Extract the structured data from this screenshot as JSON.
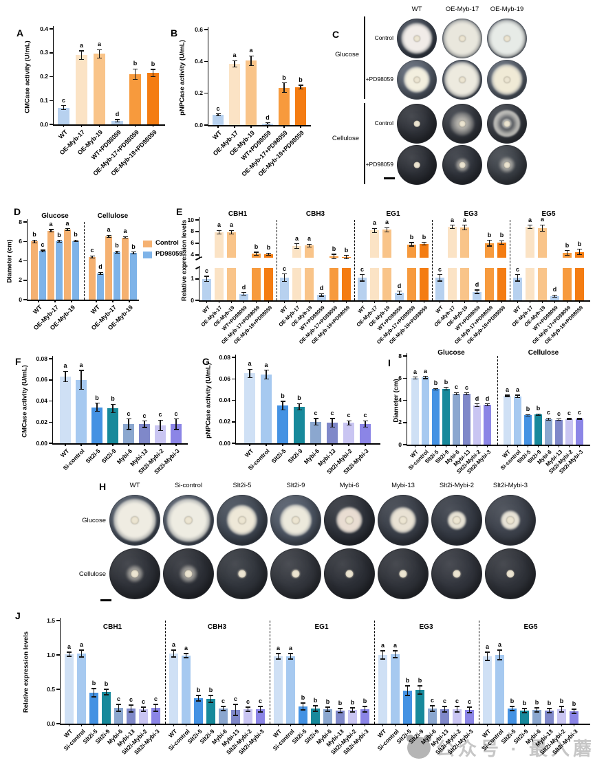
{
  "watermark": {
    "text": "公众号 · 最入蘑道"
  },
  "panel_c": {
    "label": "C",
    "columns": [
      "WT",
      "OE-Myb-17",
      "OE-Myb-19"
    ],
    "row_groups": [
      {
        "label": "Glucose",
        "rows": [
          {
            "label": "Control",
            "dishes": [
              {
                "colony_pct": 78,
                "style": "dense",
                "tone": "#f1ece8",
                "dish": "#3f4754"
              },
              {
                "colony_pct": 96,
                "style": "dense",
                "tone": "#e9e7dd",
                "dish": "#49525f"
              },
              {
                "colony_pct": 95,
                "style": "dense",
                "tone": "#e7ebe7",
                "dish": "#4b5462"
              }
            ]
          },
          {
            "label": "+PD98059",
            "dishes": [
              {
                "colony_pct": 66,
                "style": "dense",
                "tone": "#f3efdf",
                "dish": "#5a6371"
              },
              {
                "colony_pct": 90,
                "style": "dense",
                "tone": "#edeadf",
                "dish": "#4a5260"
              },
              {
                "colony_pct": 78,
                "style": "dense",
                "tone": "#f0ead6",
                "dish": "#5d6673"
              }
            ]
          }
        ]
      },
      {
        "label": "Cellulose",
        "rows": [
          {
            "label": "Control",
            "dishes": [
              {
                "colony_pct": 14,
                "style": "small",
                "tone": "#e8e0d8",
                "dish": "#2f3239"
              },
              {
                "colony_pct": 60,
                "style": "sparse",
                "tone": "#ddd8cc",
                "dish": "#363a42"
              },
              {
                "colony_pct": 68,
                "style": "ring",
                "tone": "#d8d8d2",
                "dish": "#3a3e46"
              }
            ]
          },
          {
            "label": "+PD98059",
            "dishes": [
              {
                "colony_pct": 13,
                "style": "small",
                "tone": "#e9e2d6",
                "dish": "#2c2f36"
              },
              {
                "colony_pct": 34,
                "style": "sparse",
                "tone": "#e6e0d2",
                "dish": "#31353d"
              },
              {
                "colony_pct": 40,
                "style": "sparse",
                "tone": "#e3e4da",
                "dish": "#3d4249"
              }
            ]
          }
        ]
      }
    ]
  },
  "panel_h": {
    "label": "H",
    "columns": [
      "WT",
      "Si-control",
      "Slt2i-5",
      "Slt2i-9",
      "Mybi-6",
      "Mybi-13",
      "Slt2i-Mybi-2",
      "Slt2i-Mybi-3"
    ],
    "rows": [
      {
        "label": "Glucose",
        "dishes": [
          {
            "colony_pct": 84,
            "style": "dense",
            "tone": "#efece2",
            "dish": "#4e5765"
          },
          {
            "colony_pct": 85,
            "style": "dense",
            "tone": "#eeece2",
            "dish": "#525b69"
          },
          {
            "colony_pct": 60,
            "style": "dense",
            "tone": "#eee8d8",
            "dish": "#434b57"
          },
          {
            "colony_pct": 62,
            "style": "dense",
            "tone": "#ece9dc",
            "dish": "#4f5866"
          },
          {
            "colony_pct": 52,
            "style": "dense",
            "tone": "#e9ddd2",
            "dish": "#2e323a"
          },
          {
            "colony_pct": 52,
            "style": "dense",
            "tone": "#e9e2d4",
            "dish": "#3a3f49"
          },
          {
            "colony_pct": 36,
            "style": "dense",
            "tone": "#e7e2d4",
            "dish": "#363b45"
          },
          {
            "colony_pct": 38,
            "style": "dense",
            "tone": "#e8e3d6",
            "dish": "#3d424c"
          }
        ]
      },
      {
        "label": "Cellulose",
        "dishes": [
          {
            "colony_pct": 34,
            "style": "sparse",
            "tone": "#e6ddcf",
            "dish": "#2e3138"
          },
          {
            "colony_pct": 35,
            "style": "sparse",
            "tone": "#e6decf",
            "dish": "#2c2f36"
          },
          {
            "colony_pct": 18,
            "style": "small",
            "tone": "#e8e0d0",
            "dish": "#30343b"
          },
          {
            "colony_pct": 18,
            "style": "small",
            "tone": "#e8e0d0",
            "dish": "#33363d"
          },
          {
            "colony_pct": 16,
            "style": "small",
            "tone": "#e7dfd2",
            "dish": "#2b2e35"
          },
          {
            "colony_pct": 16,
            "style": "small",
            "tone": "#e7dfd2",
            "dish": "#2f3239"
          },
          {
            "colony_pct": 16,
            "style": "small",
            "tone": "#e7e0d2",
            "dish": "#31343c"
          },
          {
            "colony_pct": 15,
            "style": "small",
            "tone": "#e7e0d2",
            "dish": "#2f3239"
          }
        ]
      }
    ]
  },
  "chart_data": [
    {
      "panel": "A",
      "type": "bar",
      "ylabel": "CMCase activity (U/mL)",
      "ylim": [
        0,
        0.4
      ],
      "yticks": [
        0,
        0.1,
        0.2,
        0.3,
        0.4
      ],
      "decimals": 1,
      "palette": [
        "#b7d1ef",
        "#fbe3c5",
        "#f9c489",
        "#b7d1ef",
        "#f79a3d",
        "#f47c12"
      ],
      "categories": [
        "WT",
        "OE-Myb-17",
        "OE-Myb-19",
        "WT+PD98059",
        "OE-Myb-17+PD98059",
        "OE-Myb-19+PD98059"
      ],
      "groups": [
        {
          "label": "",
          "values": [
            0.07,
            0.29,
            0.295,
            0.015,
            0.21,
            0.215
          ],
          "errors": [
            0.008,
            0.018,
            0.018,
            0.005,
            0.022,
            0.015
          ],
          "letters": [
            "c",
            "a",
            "a",
            "d",
            "b",
            "b"
          ]
        }
      ]
    },
    {
      "panel": "B",
      "type": "bar",
      "ylabel": "pNPCase activity (U/mL)",
      "ylim": [
        0,
        0.6
      ],
      "yticks": [
        0,
        0.2,
        0.4,
        0.6
      ],
      "decimals": 1,
      "palette": [
        "#b7d1ef",
        "#fbe3c5",
        "#f9c489",
        "#b7d1ef",
        "#f79a3d",
        "#f47c12"
      ],
      "categories": [
        "WT",
        "OE-Myb-17",
        "OE-Myb-19",
        "WT+PD98059",
        "OE-Myb-17+PD98059",
        "OE-Myb-19+PD98059"
      ],
      "groups": [
        {
          "label": "",
          "values": [
            0.065,
            0.385,
            0.405,
            0.01,
            0.235,
            0.238
          ],
          "errors": [
            0.006,
            0.02,
            0.03,
            0.004,
            0.03,
            0.012
          ],
          "letters": [
            "c",
            "a",
            "a",
            "d",
            "b",
            "b"
          ]
        }
      ]
    },
    {
      "panel": "D",
      "type": "bar",
      "ylabel": "Diameter (cm)",
      "ylim": [
        0,
        8
      ],
      "yticks": [
        0,
        2,
        4,
        6,
        8
      ],
      "decimals": 0,
      "palette": [
        "#f5b171",
        "#7eb3e8"
      ],
      "categories": [
        "WT",
        "OE-Myb-17",
        "OE-Myb-19"
      ],
      "legend": [
        {
          "label": "Control",
          "color": "#f5b171"
        },
        {
          "label": "PD98059",
          "color": "#7eb3e8"
        }
      ],
      "groups": [
        {
          "label": "Glucose",
          "values": [
            6.0,
            5.0,
            7.1,
            6.0,
            7.2,
            6.05
          ],
          "errors": [
            0.15,
            0.1,
            0.12,
            0.1,
            0.1,
            0.08
          ],
          "letters": [
            "b",
            "c",
            "a",
            "b",
            "a",
            "b"
          ]
        },
        {
          "label": "Cellulose",
          "values": [
            4.4,
            2.7,
            6.5,
            4.9,
            6.4,
            4.8
          ],
          "errors": [
            0.1,
            0.1,
            0.12,
            0.1,
            0.08,
            0.1
          ],
          "letters": [
            "c",
            "d",
            "a",
            "b",
            "a",
            "b"
          ]
        }
      ]
    },
    {
      "panel": "E",
      "type": "bar",
      "ylabel": "Relative expression levels",
      "ylim": [
        0,
        10
      ],
      "decimals": 0,
      "broken_axis": {
        "low_max": 1.5,
        "up_min": 3.5,
        "up_max": 10,
        "low_frac": 0.4,
        "gap_frac": 0.13,
        "yticks_lower": [
          0,
          1
        ],
        "yticks_upper": [
          4,
          6,
          8,
          10
        ]
      },
      "palette": [
        "#b7d1ef",
        "#fbe3c5",
        "#f9c489",
        "#b7d1ef",
        "#f79a3d",
        "#f47c12"
      ],
      "categories": [
        "WT",
        "OE-Myb-17",
        "OE-Myb-19",
        "WT+PD98059",
        "OE-Myb-17+PD98059",
        "OE-Myb-19+PD98059"
      ],
      "groups": [
        {
          "label": "CBH1",
          "values": [
            1.0,
            7.9,
            7.9,
            0.3,
            4.2,
            4.1
          ],
          "errors": [
            0.12,
            0.3,
            0.3,
            0.06,
            0.25,
            0.2
          ],
          "letters": [
            "c",
            "a",
            "a",
            "d",
            "b",
            "b"
          ]
        },
        {
          "label": "CBH3",
          "values": [
            1.05,
            5.5,
            5.6,
            0.25,
            3.7,
            3.6
          ],
          "errors": [
            0.18,
            0.4,
            0.25,
            0.06,
            0.4,
            0.3
          ],
          "letters": [
            "c",
            "a",
            "a",
            "d",
            "b",
            "b"
          ]
        },
        {
          "label": "EG1",
          "values": [
            1.05,
            8.2,
            8.3,
            0.35,
            5.8,
            5.9
          ],
          "errors": [
            0.15,
            0.35,
            0.35,
            0.07,
            0.3,
            0.25
          ],
          "letters": [
            "c",
            "a",
            "a",
            "d",
            "b",
            "b"
          ]
        },
        {
          "label": "EG3",
          "values": [
            1.05,
            8.8,
            8.7,
            0.4,
            6.0,
            6.1
          ],
          "errors": [
            0.15,
            0.3,
            0.4,
            0.08,
            0.5,
            0.3
          ],
          "letters": [
            "c",
            "a",
            "a",
            "d",
            "b",
            "b"
          ]
        },
        {
          "label": "EG5",
          "values": [
            1.05,
            8.8,
            8.6,
            0.2,
            4.3,
            4.5
          ],
          "errors": [
            0.15,
            0.3,
            0.55,
            0.05,
            0.4,
            0.45
          ],
          "letters": [
            "c",
            "a",
            "a",
            "d",
            "b",
            "b"
          ]
        }
      ]
    },
    {
      "panel": "F",
      "type": "bar",
      "ylabel": "CMCase activity (U/mL)",
      "ylim": [
        0,
        0.08
      ],
      "yticks": [
        0,
        0.02,
        0.04,
        0.06,
        0.08
      ],
      "decimals": 2,
      "palette": [
        "#cfe0f5",
        "#a6c9f0",
        "#4492e3",
        "#17899b",
        "#8ba7cf",
        "#7f88c9",
        "#c9c5f2",
        "#8b85e6"
      ],
      "categories": [
        "WT",
        "Si-control",
        "Slt2i-5",
        "Slt2i-9",
        "Mybi-6",
        "Mybi-13",
        "Slt2i-Mybi-2",
        "Slt2i-Mybi-3"
      ],
      "groups": [
        {
          "label": "",
          "values": [
            0.063,
            0.06,
            0.034,
            0.033,
            0.018,
            0.018,
            0.017,
            0.018
          ],
          "errors": [
            0.005,
            0.009,
            0.004,
            0.004,
            0.005,
            0.003,
            0.005,
            0.005
          ],
          "letters": [
            "a",
            "a",
            "b",
            "b",
            "c",
            "c",
            "c",
            "c"
          ]
        }
      ]
    },
    {
      "panel": "G",
      "type": "bar",
      "ylabel": "pNPCase activity (U/mL)",
      "ylim": [
        0,
        0.08
      ],
      "yticks": [
        0,
        0.02,
        0.04,
        0.06,
        0.08
      ],
      "decimals": 2,
      "palette": [
        "#cfe0f5",
        "#a6c9f0",
        "#4492e3",
        "#17899b",
        "#8ba7cf",
        "#7f88c9",
        "#c9c5f2",
        "#8b85e6"
      ],
      "categories": [
        "WT",
        "Si-control",
        "Slt2i-5",
        "Slt2i-9",
        "Mybi-6",
        "Mybi-13",
        "Slt2i-Mybi-2",
        "Slt2i-Mybi-3"
      ],
      "groups": [
        {
          "label": "",
          "values": [
            0.065,
            0.064,
            0.035,
            0.034,
            0.02,
            0.019,
            0.019,
            0.018
          ],
          "errors": [
            0.004,
            0.004,
            0.004,
            0.003,
            0.003,
            0.004,
            0.002,
            0.003
          ],
          "letters": [
            "a",
            "a",
            "b",
            "b",
            "c",
            "c",
            "c",
            "c"
          ]
        }
      ]
    },
    {
      "panel": "I",
      "type": "bar",
      "ylabel": "Diameter (cm)",
      "ylim": [
        0,
        8
      ],
      "yticks": [
        0,
        2,
        4,
        6,
        8
      ],
      "decimals": 0,
      "palette": [
        "#cfe0f5",
        "#a6c9f0",
        "#4492e3",
        "#17899b",
        "#8ba7cf",
        "#7f88c9",
        "#c9c5f2",
        "#8b85e6"
      ],
      "categories": [
        "WT",
        "Si-control",
        "Slt2i-5",
        "Slt2i-9",
        "Mybi-6",
        "Mybi-13",
        "Slt2i-Mybi-2",
        "Slt2i-Mybi-3"
      ],
      "groups": [
        {
          "label": "Glucose",
          "values": [
            6.0,
            6.05,
            5.0,
            5.05,
            4.6,
            4.6,
            3.55,
            3.6
          ],
          "errors": [
            0.1,
            0.1,
            0.07,
            0.12,
            0.1,
            0.08,
            0.12,
            0.08
          ],
          "letters": [
            "a",
            "a",
            "b",
            "b",
            "c",
            "c",
            "d",
            "d"
          ]
        },
        {
          "label": "Cellulose",
          "values": [
            4.4,
            4.35,
            2.65,
            2.7,
            2.3,
            2.25,
            2.3,
            2.35
          ],
          "errors": [
            0.06,
            0.12,
            0.06,
            0.06,
            0.1,
            0.06,
            0.06,
            0.05
          ],
          "letters": [
            "a",
            "a",
            "b",
            "b",
            "c",
            "c",
            "c",
            "c"
          ]
        }
      ]
    },
    {
      "panel": "J",
      "type": "bar",
      "ylabel": "Relative expression levels",
      "ylim": [
        0,
        1.5
      ],
      "yticks": [
        0,
        0.5,
        1.0,
        1.5
      ],
      "decimals": 1,
      "palette": [
        "#cfe0f5",
        "#a6c9f0",
        "#4492e3",
        "#17899b",
        "#8ba7cf",
        "#7f88c9",
        "#c9c5f2",
        "#8b85e6"
      ],
      "categories": [
        "WT",
        "Si-control",
        "Slt2i-5",
        "Slt2i-9",
        "Mybi-6",
        "Mybi-13",
        "Slt2i-Mybi-2",
        "Slt2i-Mybi-3"
      ],
      "groups": [
        {
          "label": "CBH1",
          "values": [
            1.01,
            1.02,
            0.45,
            0.46,
            0.23,
            0.22,
            0.21,
            0.23
          ],
          "errors": [
            0.03,
            0.05,
            0.06,
            0.04,
            0.05,
            0.05,
            0.03,
            0.05
          ],
          "letters": [
            "a",
            "a",
            "b",
            "b",
            "c",
            "c",
            "c",
            "c"
          ]
        },
        {
          "label": "CBH3",
          "values": [
            1.02,
            0.99,
            0.37,
            0.36,
            0.22,
            0.2,
            0.21,
            0.21
          ],
          "errors": [
            0.05,
            0.03,
            0.04,
            0.05,
            0.03,
            0.08,
            0.03,
            0.04
          ],
          "letters": [
            "a",
            "a",
            "b",
            "b",
            "c",
            "c",
            "c",
            "c"
          ]
        },
        {
          "label": "EG1",
          "values": [
            0.98,
            0.98,
            0.25,
            0.22,
            0.21,
            0.19,
            0.2,
            0.21
          ],
          "errors": [
            0.04,
            0.04,
            0.05,
            0.04,
            0.03,
            0.03,
            0.03,
            0.04
          ],
          "letters": [
            "a",
            "a",
            "b",
            "b",
            "b",
            "b",
            "b",
            "b"
          ]
        },
        {
          "label": "EG3",
          "values": [
            1.0,
            1.01,
            0.48,
            0.49,
            0.22,
            0.21,
            0.21,
            0.2
          ],
          "errors": [
            0.06,
            0.05,
            0.07,
            0.06,
            0.04,
            0.04,
            0.04,
            0.04
          ],
          "letters": [
            "a",
            "a",
            "b",
            "b",
            "c",
            "c",
            "c",
            "c"
          ]
        },
        {
          "label": "EG5",
          "values": [
            0.98,
            1.0,
            0.22,
            0.19,
            0.2,
            0.19,
            0.21,
            0.18
          ],
          "errors": [
            0.06,
            0.07,
            0.03,
            0.03,
            0.03,
            0.03,
            0.04,
            0.03
          ],
          "letters": [
            "a",
            "a",
            "b",
            "b",
            "b",
            "b",
            "b",
            "b"
          ]
        }
      ]
    }
  ]
}
